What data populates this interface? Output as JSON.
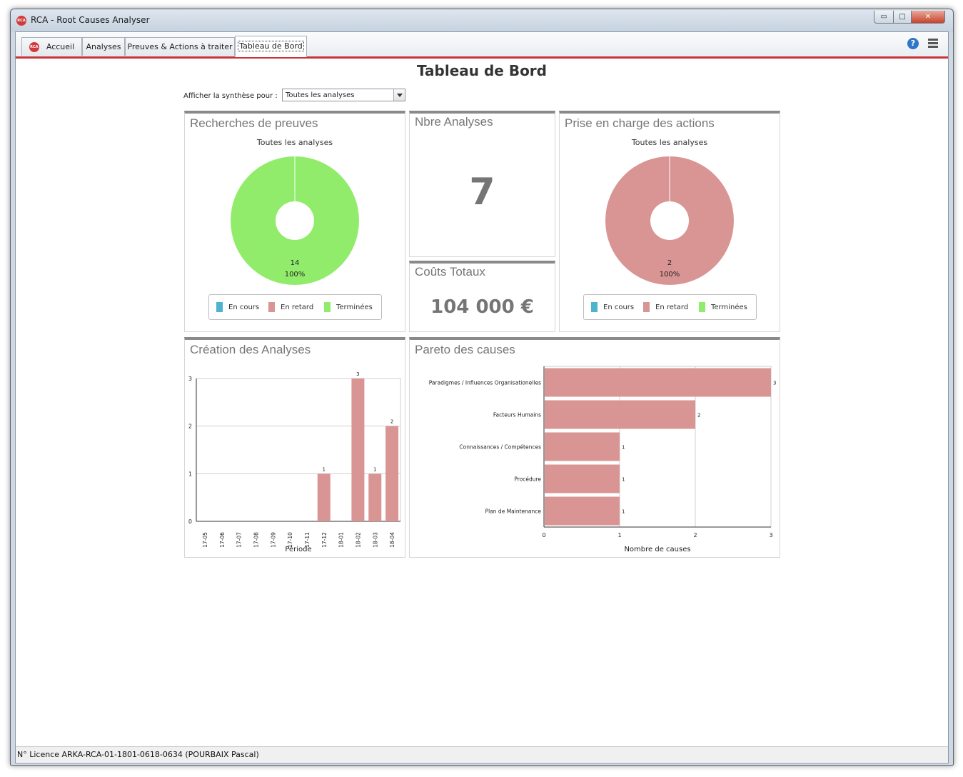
{
  "window": {
    "title": "RCA - Root Causes Analyser",
    "logo_text": "RCA",
    "min_glyph": "▭",
    "max_glyph": "□",
    "close_glyph": "✕"
  },
  "tabs": [
    {
      "label": "Accueil",
      "logo_text": "RCA"
    },
    {
      "label": "Analyses"
    },
    {
      "label": "Preuves & Actions à traiter"
    },
    {
      "label": "Tableau de Bord",
      "active": true
    }
  ],
  "toolbar": {
    "help_glyph": "?"
  },
  "page": {
    "title": "Tableau de Bord",
    "filter_label": "Afficher la synthèse pour :",
    "filter_value": "Toutes les analyses"
  },
  "colors": {
    "en_cours": "#4fb3cf",
    "en_retard": "#d99593",
    "terminees": "#92ec6c",
    "bar": "#d99593",
    "accent": "#c8343a"
  },
  "panels": {
    "preuves": {
      "title": "Recherches de preuves",
      "subtitle": "Toutes les analyses",
      "slice_value": "14",
      "slice_pct": "100%",
      "legend": [
        "En cours",
        "En retard",
        "Terminées"
      ]
    },
    "nbre": {
      "title": "Nbre Analyses",
      "value": "7"
    },
    "couts": {
      "title": "Coûts Totaux",
      "value": "104 000 €"
    },
    "actions": {
      "title": "Prise en charge des actions",
      "subtitle": "Toutes les analyses",
      "slice_value": "2",
      "slice_pct": "100%",
      "legend": [
        "En cours",
        "En retard",
        "Terminées"
      ]
    },
    "creation": {
      "title": "Création des Analyses"
    },
    "pareto": {
      "title": "Pareto des causes"
    }
  },
  "chart_data": [
    {
      "type": "pie",
      "title": "Recherches de preuves",
      "subtitle": "Toutes les analyses",
      "categories": [
        "En cours",
        "En retard",
        "Terminées"
      ],
      "values": [
        0,
        0,
        14
      ],
      "labels": [
        "",
        "",
        "14 100%"
      ]
    },
    {
      "type": "pie",
      "title": "Prise en charge des actions",
      "subtitle": "Toutes les analyses",
      "categories": [
        "En cours",
        "En retard",
        "Terminées"
      ],
      "values": [
        0,
        2,
        0
      ],
      "labels": [
        "",
        "2 100%",
        ""
      ]
    },
    {
      "type": "bar",
      "title": "Création des Analyses",
      "xlabel": "Période",
      "ylabel": "",
      "categories": [
        "17-05",
        "17-06",
        "17-07",
        "17-08",
        "17-09",
        "17-10",
        "17-11",
        "17-12",
        "18-01",
        "18-02",
        "18-03",
        "18-04"
      ],
      "values": [
        0,
        0,
        0,
        0,
        0,
        0,
        0,
        1,
        0,
        3,
        1,
        2
      ],
      "yticks": [
        "0",
        "1",
        "2",
        "3"
      ],
      "ylim": [
        0,
        3
      ],
      "grid": true
    },
    {
      "type": "bar",
      "orientation": "horizontal",
      "title": "Pareto des causes",
      "xlabel": "Nombre de causes",
      "ylabel": "",
      "categories": [
        "Paradigmes / Influences Organisationelles",
        "Facteurs Humains",
        "Connaissances / Compétences",
        "Procédure",
        "Plan de Maintenance"
      ],
      "values": [
        3,
        2,
        1,
        1,
        1
      ],
      "xticks": [
        "0",
        "1",
        "2",
        "3"
      ],
      "xlim": [
        0,
        3
      ],
      "grid": true
    }
  ],
  "status": {
    "licence": "N° Licence ARKA-RCA-01-1801-0618-0634 (POURBAIX Pascal)"
  }
}
